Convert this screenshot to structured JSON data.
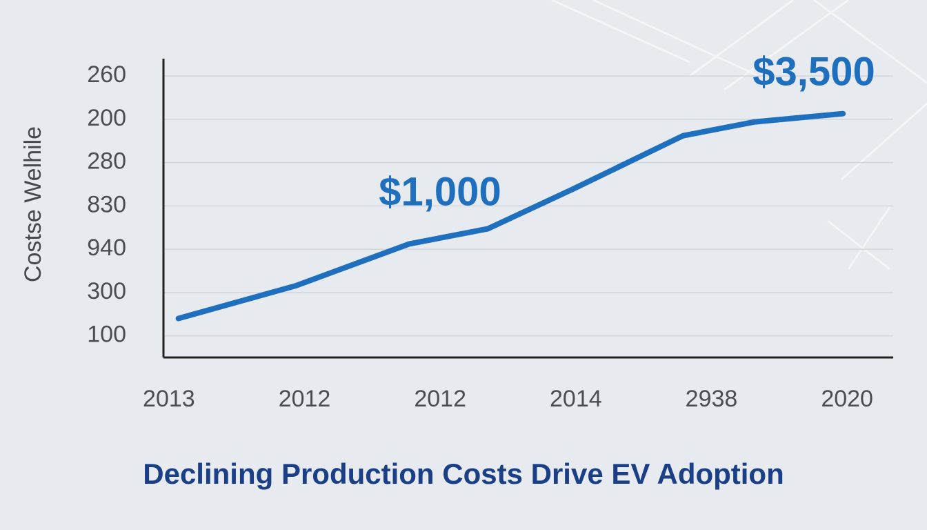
{
  "chart_data": {
    "type": "line",
    "title": "Declining Production Costs Drive EV Adoption",
    "y_axis_label": "Costse Welhile",
    "categories": [
      "2013",
      "2012",
      "2012",
      "2014",
      "2938",
      "2020"
    ],
    "ycategories": [
      "100",
      "300",
      "940",
      "830",
      "280",
      "200",
      "260"
    ],
    "xlim": [
      -0.04,
      5.34
    ],
    "ylim": [
      -0.5,
      6.4
    ],
    "series": [
      {
        "name": "Cost",
        "color": "#1f6fbf",
        "x": [
          0.07,
          0.94,
          1.77,
          2.35,
          2.98,
          3.79,
          4.32,
          4.97
        ],
        "values": [
          0.4,
          1.16,
          2.12,
          2.47,
          3.39,
          4.62,
          4.94,
          5.13
        ]
      }
    ],
    "annotations": [
      "$1,000",
      "$3,500"
    ],
    "grid": true
  }
}
